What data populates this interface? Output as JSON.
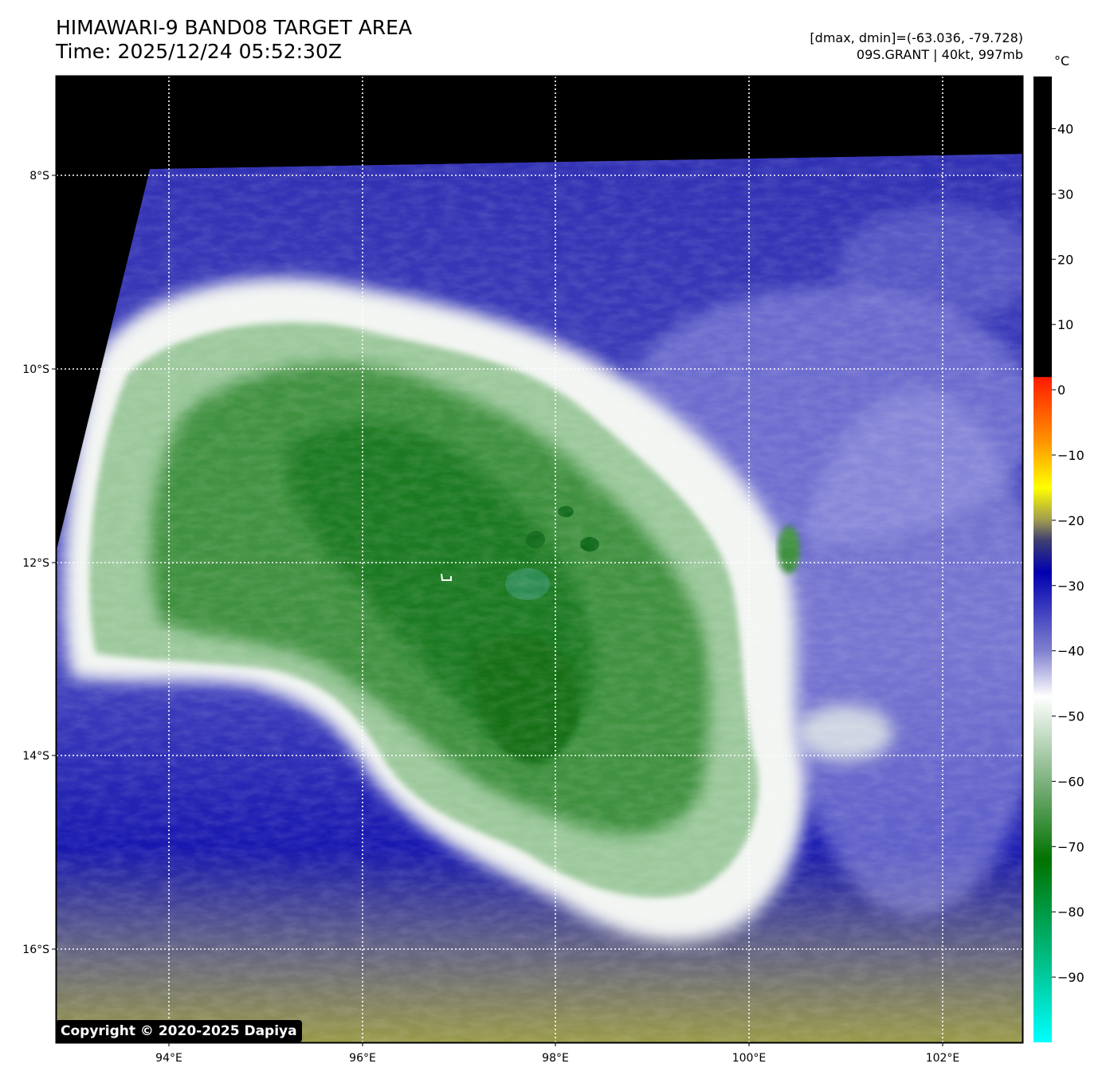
{
  "header": {
    "title": "HIMAWARI-9 BAND08 TARGET AREA",
    "time": "Time: 2025/12/24 05:52:30Z",
    "range": "[dmax, dmin]=(-63.036, -79.728)",
    "storm": "09S.GRANT | 40kt, 997mb"
  },
  "colorbar": {
    "unit": "°C",
    "ticks": [
      "40",
      "30",
      "20",
      "10",
      "0",
      "−10",
      "−20",
      "−30",
      "−40",
      "−50",
      "−60",
      "−70",
      "−80",
      "−90"
    ],
    "stops": [
      {
        "t": 48,
        "c": "#000000"
      },
      {
        "t": 2,
        "c": "#000000"
      },
      {
        "t": 1.9,
        "c": "#ff1a00"
      },
      {
        "t": -8,
        "c": "#ff9400"
      },
      {
        "t": -15,
        "c": "#ffff00"
      },
      {
        "t": -20,
        "c": "#a09a50"
      },
      {
        "t": -23,
        "c": "#404070"
      },
      {
        "t": -28,
        "c": "#0000b0"
      },
      {
        "t": -40,
        "c": "#8080d0"
      },
      {
        "t": -47,
        "c": "#ffffff"
      },
      {
        "t": -62,
        "c": "#6aa66a"
      },
      {
        "t": -72,
        "c": "#007300"
      },
      {
        "t": -88,
        "c": "#00c08a"
      },
      {
        "t": -100,
        "c": "#00ffff"
      }
    ]
  },
  "map": {
    "lon_ticks": [
      "94°E",
      "96°E",
      "98°E",
      "100°E",
      "102°E"
    ],
    "lat_ticks": [
      "8°S",
      "10°S",
      "12°S",
      "14°S",
      "16°S"
    ],
    "colors": {
      "space": "#000000",
      "cold_cloud": "#2c7a2c",
      "anvil_edge": "#f4f6f4",
      "clear_air": "#3a3ab8",
      "warm_low": "#8a8a55",
      "grid": "#ffffff"
    },
    "features": [
      "storm-center-marker"
    ]
  },
  "copyright": "Copyright © 2020-2025 Dapiya"
}
